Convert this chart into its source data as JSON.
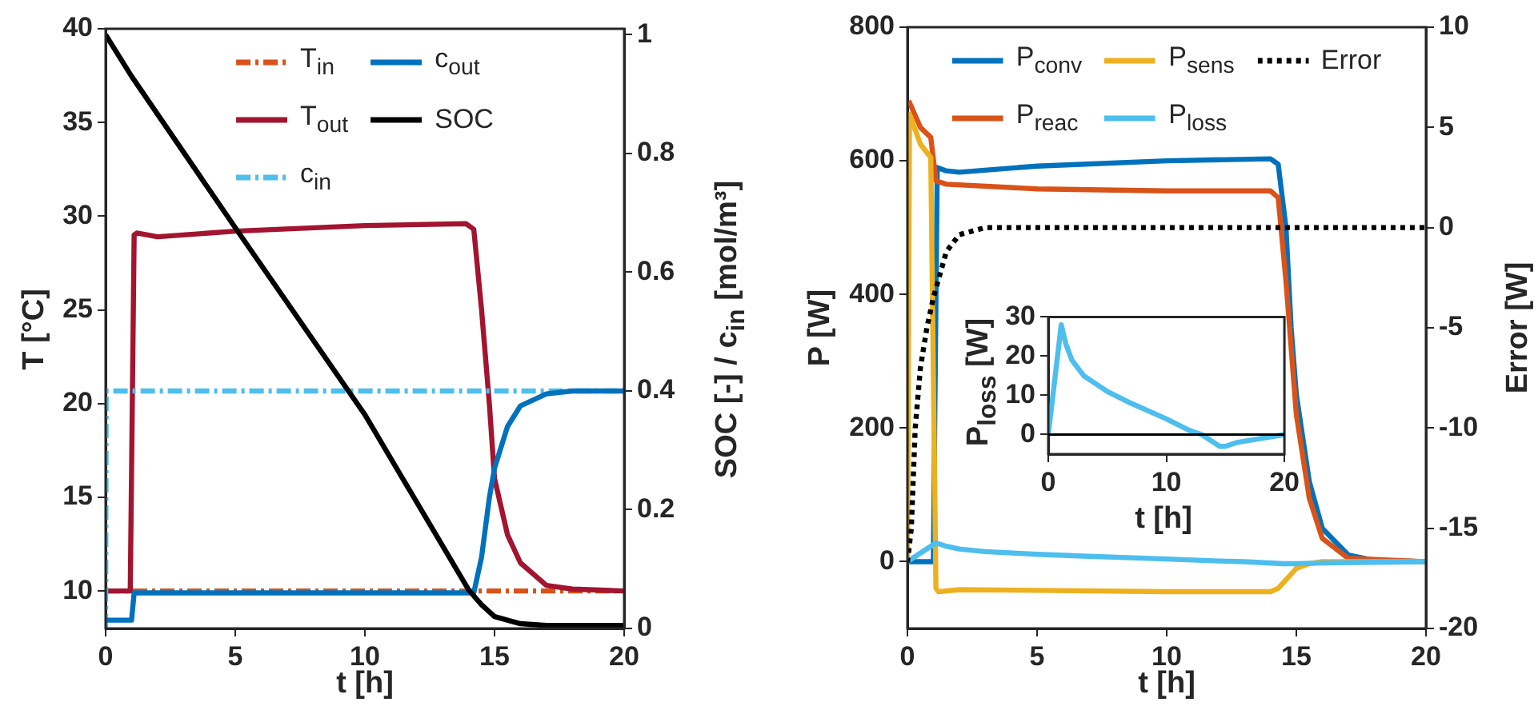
{
  "chart_data": [
    {
      "type": "line",
      "xlabel": "t [h]",
      "ylabel": "T [°C]",
      "y2label": "SOC [-] / c$_{in}$ [mol/m³]",
      "xlim": [
        0,
        20
      ],
      "xticks": [
        0,
        5,
        10,
        15,
        20
      ],
      "ylim": [
        8,
        40
      ],
      "yticks": [
        10,
        15,
        20,
        25,
        30,
        35,
        40
      ],
      "y2lim": [
        0,
        1.01
      ],
      "y2ticks": [
        0,
        0.2,
        0.4,
        0.6,
        0.8,
        1
      ],
      "grid": false,
      "legend": "top",
      "series": [
        {
          "name": "T$_{in}$",
          "color": "#d95319",
          "line_style": "dashed",
          "x": [
            0,
            20
          ],
          "values": [
            10,
            10
          ]
        },
        {
          "name": "T$_{out}$",
          "color": "#a2142f",
          "x": [
            0,
            0.95,
            1.1,
            1.2,
            2,
            5,
            10,
            13.9,
            14.2,
            14.5,
            14.8,
            15,
            15.5,
            16,
            17,
            18,
            20
          ],
          "values": [
            10,
            10,
            29,
            29.1,
            28.9,
            29.2,
            29.5,
            29.6,
            29.3,
            25,
            20,
            16,
            13,
            11.5,
            10.3,
            10.1,
            10
          ]
        },
        {
          "name": "c$_{in}$",
          "color": "#4dbeee",
          "line_style": "dashed",
          "axis": "y2",
          "x": [
            0,
            0.02,
            20
          ],
          "values": [
            0,
            0.4,
            0.4
          ]
        },
        {
          "name": "c$_{out}$",
          "color": "#0072bd",
          "axis": "y2",
          "x": [
            0,
            1,
            1.1,
            14.2,
            14.5,
            14.8,
            15,
            15.5,
            16,
            17,
            18,
            20
          ],
          "values": [
            0.014,
            0.014,
            0.06,
            0.06,
            0.12,
            0.22,
            0.27,
            0.34,
            0.375,
            0.395,
            0.4,
            0.4
          ]
        },
        {
          "name": "SOC",
          "color": "#000000",
          "axis": "y2",
          "x": [
            0,
            1,
            5,
            10,
            14,
            14.5,
            15,
            16,
            17,
            20
          ],
          "values": [
            1,
            0.93,
            0.675,
            0.36,
            0.065,
            0.04,
            0.02,
            0.008,
            0.005,
            0.005
          ]
        }
      ]
    },
    {
      "type": "line",
      "xlabel": "t [h]",
      "ylabel": "P [W]",
      "y2label": "Error [W]",
      "xlim": [
        0,
        20
      ],
      "xticks": [
        0,
        5,
        10,
        15,
        20
      ],
      "ylim": [
        -100,
        800
      ],
      "yticks": [
        0,
        200,
        400,
        600,
        800
      ],
      "y2lim": [
        -20,
        10
      ],
      "y2ticks": [
        -20,
        -15,
        -10,
        -5,
        0,
        5,
        10
      ],
      "grid": false,
      "legend": "top",
      "series": [
        {
          "name": "P$_{conv}$",
          "color": "#0072bd",
          "x": [
            0,
            1,
            1.15,
            1.5,
            2,
            5,
            10,
            14,
            14.3,
            14.6,
            14.8,
            15,
            15.5,
            16,
            17,
            18,
            20
          ],
          "values": [
            0,
            0,
            590,
            585,
            583,
            592,
            600,
            603,
            595,
            500,
            350,
            250,
            120,
            50,
            10,
            2,
            0
          ]
        },
        {
          "name": "P$_{reac}$",
          "color": "#d95319",
          "x": [
            0.05,
            0.5,
            0.9,
            1.1,
            1.5,
            5,
            10,
            14,
            14.3,
            14.6,
            15,
            15.5,
            16,
            17,
            20
          ],
          "values": [
            690,
            650,
            635,
            570,
            565,
            558,
            555,
            555,
            545,
            420,
            220,
            95,
            35,
            5,
            0
          ]
        },
        {
          "name": "P$_{sens}$",
          "color": "#edb120",
          "x": [
            0,
            0.08,
            0.5,
            0.9,
            1.1,
            1.2,
            2,
            5,
            10,
            14,
            14.3,
            15,
            15.5,
            16,
            20
          ],
          "values": [
            0,
            670,
            625,
            605,
            -40,
            -45,
            -42,
            -43,
            -45,
            -45,
            -40,
            -10,
            -3,
            0,
            0
          ]
        },
        {
          "name": "P$_{loss}$",
          "color": "#4dbeee",
          "x": [
            0,
            1.1,
            1.5,
            2,
            3,
            5,
            7,
            10,
            12,
            13,
            14.5,
            15,
            16,
            18,
            20
          ],
          "values": [
            0,
            28,
            23,
            19,
            15,
            11,
            8,
            4,
            1,
            0,
            -3,
            -3,
            -2,
            -1,
            0
          ]
        },
        {
          "name": "Error",
          "color": "#000000",
          "line_style": "dotted",
          "axis": "y2",
          "x": [
            0,
            0.15,
            0.3,
            0.5,
            0.75,
            1,
            1.5,
            2,
            3,
            20
          ],
          "values": [
            -16.7,
            -15,
            -10,
            -7,
            -5,
            -3.5,
            -1.2,
            -0.35,
            0,
            0
          ]
        }
      ]
    },
    {
      "type": "line",
      "xlabel": "t [h]",
      "ylabel": "P$_{loss}$ [W]",
      "xlim": [
        0,
        20
      ],
      "xticks": [
        0,
        10,
        20
      ],
      "ylim": [
        -5,
        30
      ],
      "yticks": [
        0,
        10,
        20,
        30
      ],
      "grid": false,
      "ref_lines": [
        {
          "axis": "y",
          "value": 0,
          "color": "#000000"
        }
      ],
      "series": [
        {
          "color": "#4dbeee",
          "x": [
            0,
            1.1,
            1.5,
            2,
            3,
            5,
            7,
            10,
            12,
            13,
            14.5,
            15,
            16,
            18,
            20
          ],
          "values": [
            0,
            28,
            23,
            19,
            15,
            11,
            8,
            4,
            1,
            0,
            -3,
            -3,
            -2,
            -1,
            0
          ]
        }
      ]
    }
  ]
}
